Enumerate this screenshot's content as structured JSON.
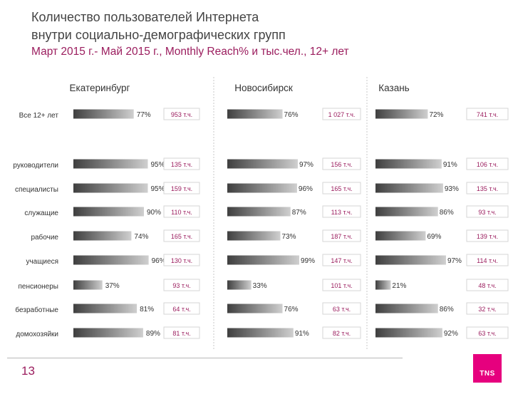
{
  "header": {
    "title_line1": "Количество пользователей Интернета",
    "title_line2": "внутри социально-демографических групп",
    "subtitle": "Март 2015 г.- Май 2015 г., Monthly Reach% и тыс.чел., 12+ лет"
  },
  "page_number": "13",
  "logo_text": "TNS",
  "colors": {
    "bar_dark": "#3f3f3f",
    "bar_light": "#cfcfcf",
    "accent": "#9b1d5e",
    "logo": "#e6007e"
  },
  "chart_data": {
    "type": "bar",
    "orientation": "horizontal",
    "categories": [
      "Все 12+ лет",
      "руководители",
      "специалисты",
      "служащие",
      "рабочие",
      "учащиеся",
      "пенсионеры",
      "безработные",
      "домохозяйки"
    ],
    "panels": [
      {
        "name": "Екатеринбург",
        "reach_pct": [
          77,
          95,
          95,
          90,
          74,
          96,
          37,
          81,
          89
        ],
        "reach_labels": [
          "77%",
          "95%",
          "95%",
          "90%",
          "74%",
          "96%",
          "37%",
          "81%",
          "89%"
        ],
        "users_labels": [
          "953 т.ч.",
          "135 т.ч.",
          "159 т.ч.",
          "110 т.ч.",
          "165 т.ч.",
          "130 т.ч.",
          "93 т.ч.",
          "64 т.ч.",
          "81 т.ч."
        ]
      },
      {
        "name": "Новосибирск",
        "reach_pct": [
          76,
          97,
          96,
          87,
          73,
          99,
          33,
          76,
          91
        ],
        "reach_labels": [
          "76%",
          "97%",
          "96%",
          "87%",
          "73%",
          "99%",
          "33%",
          "76%",
          "91%"
        ],
        "users_labels": [
          "1 027 т.ч.",
          "156 т.ч.",
          "165 т.ч.",
          "113 т.ч.",
          "187 т.ч.",
          "147 т.ч.",
          "101 т.ч.",
          "63 т.ч.",
          "82 т.ч."
        ]
      },
      {
        "name": "Казань",
        "reach_pct": [
          72,
          91,
          93,
          86,
          69,
          97,
          21,
          86,
          92
        ],
        "reach_labels": [
          "72%",
          "91%",
          "93%",
          "86%",
          "69%",
          "97%",
          "21%",
          "86%",
          "92%"
        ],
        "users_labels": [
          "741 т.ч.",
          "106 т.ч.",
          "135 т.ч.",
          "93 т.ч.",
          "139 т.ч.",
          "114 т.ч.",
          "48 т.ч.",
          "32 т.ч.",
          "63 т.ч."
        ]
      }
    ],
    "xlim": [
      0,
      100
    ]
  }
}
